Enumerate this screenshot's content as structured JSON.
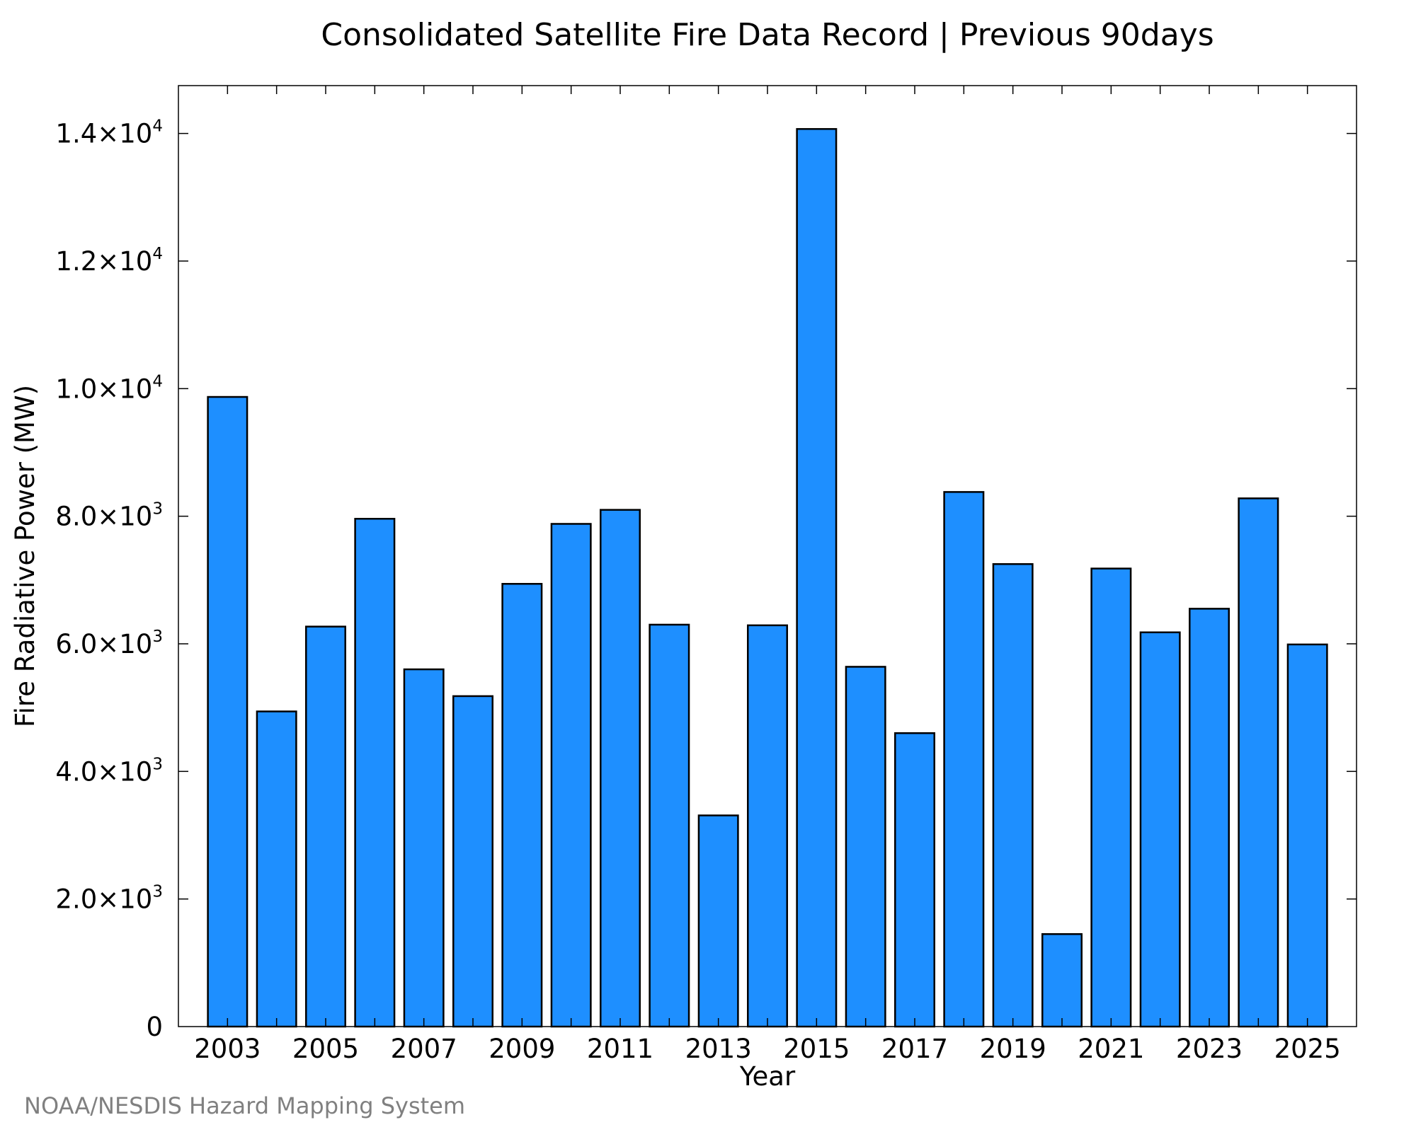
{
  "chart_data": {
    "type": "bar",
    "title": "Consolidated Satellite Fire Data Record | Previous 90days",
    "xlabel": "Year",
    "ylabel": "Fire Radiative Power (MW)",
    "categories": [
      "2003",
      "2004",
      "2005",
      "2006",
      "2007",
      "2008",
      "2009",
      "2010",
      "2011",
      "2012",
      "2013",
      "2014",
      "2015",
      "2016",
      "2017",
      "2018",
      "2019",
      "2020",
      "2021",
      "2022",
      "2023",
      "2024",
      "2025"
    ],
    "values": [
      9870,
      4940,
      6270,
      7960,
      5600,
      5180,
      6940,
      7880,
      8100,
      6300,
      3310,
      6290,
      14070,
      5640,
      4600,
      8380,
      7250,
      1450,
      7180,
      6180,
      6550,
      8280,
      5990
    ],
    "x_tick_labels": [
      "2003",
      "2005",
      "2007",
      "2009",
      "2011",
      "2013",
      "2015",
      "2017",
      "2019",
      "2021",
      "2023",
      "2025"
    ],
    "ylim": [
      0,
      14750
    ],
    "y_ticks": [
      {
        "value": 0,
        "mantissa": "0",
        "base": "",
        "exp": ""
      },
      {
        "value": 2000,
        "mantissa": "2.0",
        "base": "×10",
        "exp": "3"
      },
      {
        "value": 4000,
        "mantissa": "4.0",
        "base": "×10",
        "exp": "3"
      },
      {
        "value": 6000,
        "mantissa": "6.0",
        "base": "×10",
        "exp": "3"
      },
      {
        "value": 8000,
        "mantissa": "8.0",
        "base": "×10",
        "exp": "3"
      },
      {
        "value": 10000,
        "mantissa": "1.0",
        "base": "×10",
        "exp": "4"
      },
      {
        "value": 12000,
        "mantissa": "1.2",
        "base": "×10",
        "exp": "4"
      },
      {
        "value": 14000,
        "mantissa": "1.4",
        "base": "×10",
        "exp": "4"
      }
    ],
    "grid": false,
    "bar_color": "#1E8FFF",
    "bar_edge_color": "#000000"
  },
  "credit": "NOAA/NESDIS Hazard Mapping System"
}
